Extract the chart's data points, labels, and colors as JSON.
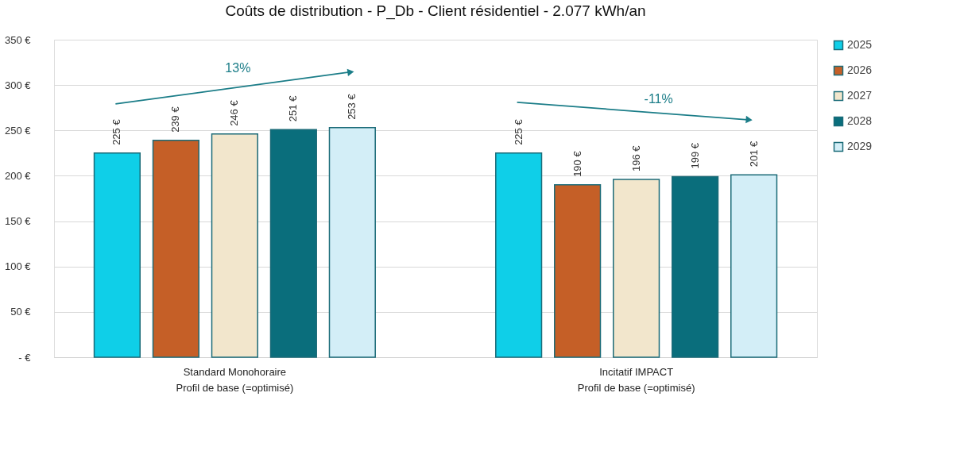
{
  "chart_data": {
    "type": "bar",
    "title": "Coûts de distribution - P_Db - Client résidentiel - 2.077 kWh/an",
    "categories": [
      "Standard Monohoraire\nProfil de base (=optimisé)",
      "Incitatif IMPACT\nProfil de base (=optimisé)"
    ],
    "series": [
      {
        "name": "2025",
        "color": "#0fcfe8",
        "values": [
          225,
          225
        ],
        "value_labels": [
          "225 €",
          "225 €"
        ]
      },
      {
        "name": "2026",
        "color": "#c55f27",
        "values": [
          239,
          190
        ],
        "value_labels": [
          "239 €",
          "190 €"
        ]
      },
      {
        "name": "2027",
        "color": "#f2e6cc",
        "values": [
          246,
          196
        ],
        "value_labels": [
          "246 €",
          "196 €"
        ]
      },
      {
        "name": "2028",
        "color": "#0a6e7c",
        "values": [
          251,
          199
        ],
        "value_labels": [
          "251 €",
          "199 €"
        ]
      },
      {
        "name": "2029",
        "color": "#d3eef7",
        "values": [
          253,
          201
        ],
        "value_labels": [
          "253 €",
          "201 €"
        ]
      }
    ],
    "ylim": [
      0,
      350
    ],
    "yticks": [
      {
        "value": 0,
        "label": "-   €"
      },
      {
        "value": 50,
        "label": "50 €"
      },
      {
        "value": 100,
        "label": "100 €"
      },
      {
        "value": 150,
        "label": "150 €"
      },
      {
        "value": 200,
        "label": "200 €"
      },
      {
        "value": 250,
        "label": "250 €"
      },
      {
        "value": 300,
        "label": "300 €"
      },
      {
        "value": 350,
        "label": "350 €"
      }
    ],
    "grid": "y",
    "legend": "right",
    "annotations": [
      "13%",
      "-11%"
    ]
  }
}
